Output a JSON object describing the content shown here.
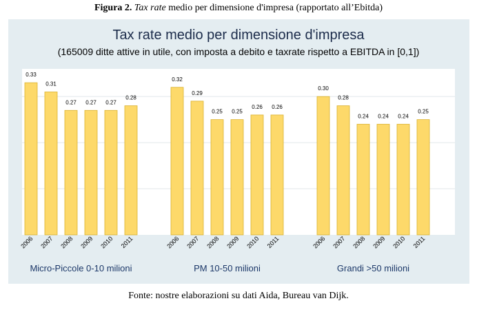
{
  "caption": {
    "figure_number": "Figura 2.",
    "term": "Tax rate",
    "rest": "medio per dimensione d'impresa (rapportato all’Ebitda)"
  },
  "source_note": "Fonte: nostre elaborazioni su dati Aida, Bureau van Dijk.",
  "colors": {
    "background": "#e4edf1",
    "plot_area": "#ffffff",
    "bar_fill": "#fdd96a",
    "bar_stroke": "#d9b12f",
    "group_label": "#1b3768"
  },
  "chart_data": {
    "type": "bar",
    "title": "Tax rate medio per dimensione d'impresa",
    "subtitle": "(165009 ditte attive in utile, con imposta a debito e taxrate rispetto a EBITDA in [0,1])",
    "xlabel": "",
    "ylabel": "",
    "ylim": [
      0,
      0.36
    ],
    "grid": true,
    "legend": "none",
    "groups": [
      {
        "label": "Micro-Piccole 0-10 milioni",
        "categories": [
          "2006",
          "2007",
          "2008",
          "2009",
          "2010",
          "2011"
        ],
        "values": [
          0.33,
          0.31,
          0.27,
          0.27,
          0.27,
          0.28
        ]
      },
      {
        "label": "PM 10-50 milioni",
        "categories": [
          "2006",
          "2007",
          "2008",
          "2009",
          "2010",
          "2011"
        ],
        "values": [
          0.32,
          0.29,
          0.25,
          0.25,
          0.26,
          0.26
        ]
      },
      {
        "label": "Grandi >50 milioni",
        "categories": [
          "2006",
          "2007",
          "2008",
          "2009",
          "2010",
          "2011"
        ],
        "values": [
          0.3,
          0.28,
          0.24,
          0.24,
          0.24,
          0.25
        ]
      }
    ]
  }
}
